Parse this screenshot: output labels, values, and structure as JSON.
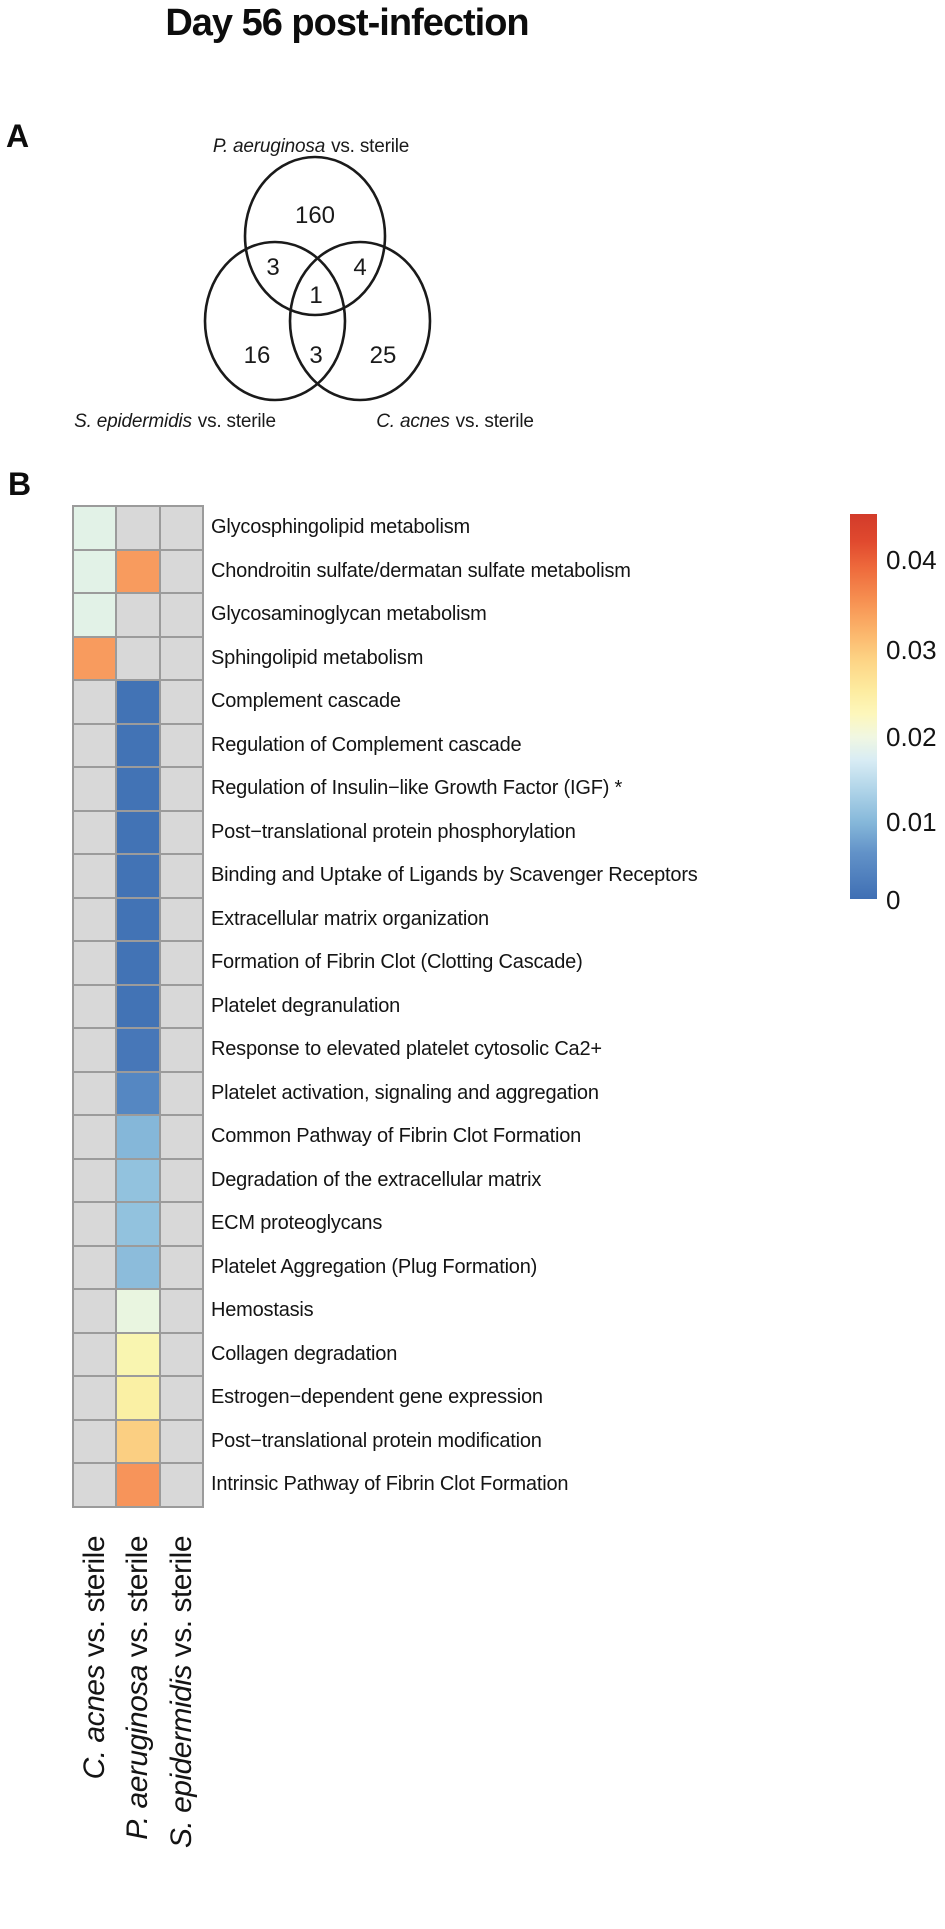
{
  "title": "Day 56 post-infection",
  "panel_a": {
    "label": "A"
  },
  "panel_b": {
    "label": "B"
  },
  "chart_data": [
    {
      "type": "venn3",
      "panel": "A",
      "sets": [
        {
          "species": "P. aeruginosa",
          "suffix": "vs. sterile",
          "position": "top"
        },
        {
          "species": "S. epidermidis",
          "suffix": "vs. sterile",
          "position": "bottom-left"
        },
        {
          "species": "C. acnes",
          "suffix": "vs. sterile",
          "position": "bottom-right"
        }
      ],
      "counts": {
        "pa_only": 160,
        "pa_and_se": 3,
        "pa_and_ca": 4,
        "pa_se_ca": 1,
        "se_only": 16,
        "se_and_ca": 3,
        "ca_only": 25
      }
    },
    {
      "type": "heatmap",
      "panel": "B",
      "columns": [
        {
          "species": "C. acnes",
          "suffix": "vs. sterile"
        },
        {
          "species": "P. aeruginosa",
          "suffix": "vs. sterile"
        },
        {
          "species": "S. epidermidis",
          "suffix": "vs. sterile"
        }
      ],
      "na_color": "#d8d8d8",
      "grid_line_color": "#9b9b9b",
      "legend": {
        "ticks": [
          "0.04",
          "0.03",
          "0.02",
          "0.01",
          "0"
        ],
        "min": 0,
        "max": 0.045,
        "orientation": "vertical",
        "high_color": "#d23b2a",
        "low_color": "#3f6fb4",
        "colormap": "RdYlBu (red = high p, blue = low p)"
      },
      "rows": [
        {
          "label": "Glycosphingolipid metabolism",
          "cells": [
            {
              "color": "#e2f2e7",
              "p": 0.019
            },
            null,
            null
          ]
        },
        {
          "label": "Chondroitin sulfate/dermatan sulfate metabolism",
          "cells": [
            {
              "color": "#e2f2e7",
              "p": 0.019
            },
            {
              "color": "#f89b5e",
              "p": 0.036
            },
            null
          ]
        },
        {
          "label": "Glycosaminoglycan metabolism",
          "cells": [
            {
              "color": "#e2f2e7",
              "p": 0.019
            },
            null,
            null
          ]
        },
        {
          "label": "Sphingolipid metabolism",
          "cells": [
            {
              "color": "#f89b5e",
              "p": 0.036
            },
            null,
            null
          ]
        },
        {
          "label": "Complement cascade",
          "cells": [
            null,
            {
              "color": "#4273b5",
              "p": 0.0
            },
            null
          ]
        },
        {
          "label": "Regulation of Complement cascade",
          "cells": [
            null,
            {
              "color": "#4273b5",
              "p": 0.0
            },
            null
          ]
        },
        {
          "label": "Regulation of Insulin−like Growth Factor (IGF) *",
          "cells": [
            null,
            {
              "color": "#4273b5",
              "p": 0.0
            },
            null
          ]
        },
        {
          "label": "Post−translational protein phosphorylation",
          "cells": [
            null,
            {
              "color": "#4273b5",
              "p": 0.0
            },
            null
          ]
        },
        {
          "label": "Binding and Uptake of Ligands by Scavenger Receptors",
          "cells": [
            null,
            {
              "color": "#4273b5",
              "p": 0.0
            },
            null
          ]
        },
        {
          "label": "Extracellular matrix organization",
          "cells": [
            null,
            {
              "color": "#4273b5",
              "p": 0.0
            },
            null
          ]
        },
        {
          "label": "Formation of Fibrin Clot (Clotting Cascade)",
          "cells": [
            null,
            {
              "color": "#4273b5",
              "p": 0.0
            },
            null
          ]
        },
        {
          "label": "Platelet degranulation",
          "cells": [
            null,
            {
              "color": "#4273b5",
              "p": 0.0
            },
            null
          ]
        },
        {
          "label": "Response to elevated platelet cytosolic Ca2+",
          "cells": [
            null,
            {
              "color": "#4777b8",
              "p": 0.001
            },
            null
          ]
        },
        {
          "label": "Platelet activation, signaling and aggregation",
          "cells": [
            null,
            {
              "color": "#5587c2",
              "p": 0.004
            },
            null
          ]
        },
        {
          "label": "Common Pathway of Fibrin Clot Formation",
          "cells": [
            null,
            {
              "color": "#85b7d9",
              "p": 0.009
            },
            null
          ]
        },
        {
          "label": "Degradation of the extracellular matrix",
          "cells": [
            null,
            {
              "color": "#92c2de",
              "p": 0.011
            },
            null
          ]
        },
        {
          "label": "ECM proteoglycans",
          "cells": [
            null,
            {
              "color": "#92c2de",
              "p": 0.011
            },
            null
          ]
        },
        {
          "label": "Platelet Aggregation (Plug Formation)",
          "cells": [
            null,
            {
              "color": "#8cbcdb",
              "p": 0.01
            },
            null
          ]
        },
        {
          "label": "Hemostasis",
          "cells": [
            null,
            {
              "color": "#e9f5e0",
              "p": 0.02
            },
            null
          ]
        },
        {
          "label": "Collagen degradation",
          "cells": [
            null,
            {
              "color": "#f9f5b0",
              "p": 0.024
            },
            null
          ]
        },
        {
          "label": "Estrogen−dependent gene expression",
          "cells": [
            null,
            {
              "color": "#faf0a4",
              "p": 0.025
            },
            null
          ]
        },
        {
          "label": "Post−translational protein modification",
          "cells": [
            null,
            {
              "color": "#fbcf82",
              "p": 0.03
            },
            null
          ]
        },
        {
          "label": "Intrinsic Pathway of Fibrin Clot Formation",
          "cells": [
            null,
            {
              "color": "#f7945a",
              "p": 0.037
            },
            null
          ]
        }
      ]
    }
  ]
}
